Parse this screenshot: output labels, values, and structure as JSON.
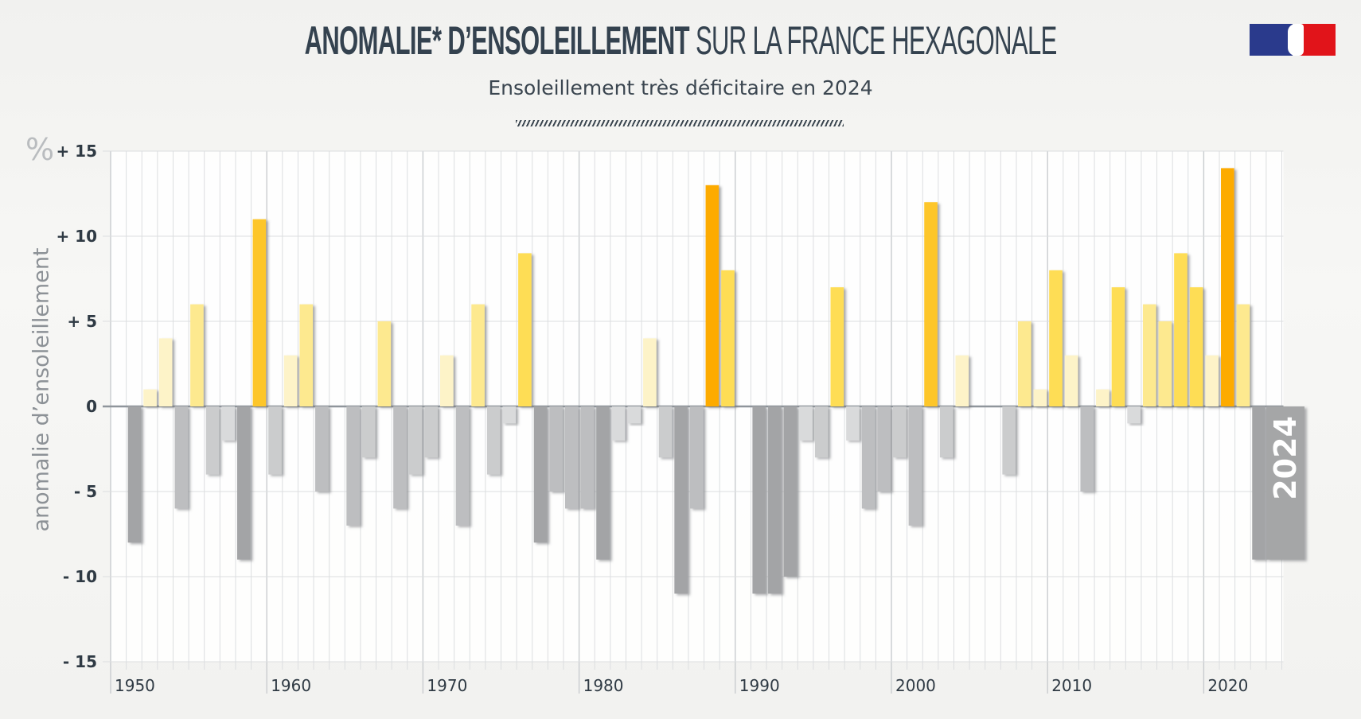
{
  "header": {
    "title_bold": "ANOMALIE* D’ENSOLEILLEMENT",
    "title_light": "SUR LA FRANCE HEXAGONALE",
    "subtitle": "Ensoleillement très déficitaire en 2024",
    "logo": "republique-francaise-logo"
  },
  "colors": {
    "gray_dark": "#a3a4a6",
    "gray_mid": "#bdbec0",
    "gray_light": "#d9dadb",
    "yellow_pale": "#fdf3c8",
    "yellow_light": "#fde98f",
    "yellow": "#fedd55",
    "yellow_strong": "#fdc62a",
    "orange": "#fdab03",
    "highlight_bar": "#a5a6a7"
  },
  "chart_data": {
    "type": "bar",
    "title": "ANOMALIE* D’ENSOLEILLEMENT SUR LA FRANCE HEXAGONALE",
    "subtitle": "Ensoleillement très déficitaire en 2024",
    "xlabel": "",
    "ylabel": "anomalie d’ensoleillement",
    "yunit": "%",
    "ylim": [
      -15,
      15
    ],
    "yticks": [
      15,
      10,
      5,
      0,
      -5,
      -10,
      -15
    ],
    "ytick_labels": [
      "+ 15",
      "+ 10",
      "+ 5",
      "0",
      "- 5",
      "- 10",
      "- 15"
    ],
    "xticks": [
      1950,
      1960,
      1970,
      1980,
      1990,
      2000,
      2010,
      2020
    ],
    "xtick_labels": [
      "1950",
      "1960",
      "1970",
      "1980",
      "1990",
      "2000",
      "2010",
      "2020"
    ],
    "grid": true,
    "highlight": {
      "year": 2024,
      "label": "2024"
    },
    "x": [
      1950,
      1951,
      1952,
      1953,
      1954,
      1955,
      1956,
      1957,
      1958,
      1959,
      1960,
      1961,
      1962,
      1963,
      1964,
      1965,
      1966,
      1967,
      1968,
      1969,
      1970,
      1971,
      1972,
      1973,
      1974,
      1975,
      1976,
      1977,
      1978,
      1979,
      1980,
      1981,
      1982,
      1983,
      1984,
      1985,
      1986,
      1987,
      1988,
      1989,
      1990,
      1991,
      1992,
      1993,
      1994,
      1995,
      1996,
      1997,
      1998,
      1999,
      2000,
      2001,
      2002,
      2003,
      2004,
      2005,
      2006,
      2007,
      2008,
      2009,
      2010,
      2011,
      2012,
      2013,
      2014,
      2015,
      2016,
      2017,
      2018,
      2019,
      2020,
      2021,
      2022,
      2023,
      2024
    ],
    "values": [
      0,
      -8,
      1,
      4,
      -6,
      6,
      -4,
      -2,
      -9,
      11,
      -4,
      3,
      6,
      -5,
      0,
      -7,
      -3,
      5,
      -6,
      -4,
      -3,
      3,
      -7,
      6,
      -4,
      -1,
      9,
      -8,
      -5,
      -6,
      -6,
      -9,
      -2,
      -1,
      4,
      -3,
      -11,
      -6,
      13,
      8,
      0,
      -11,
      -11,
      -10,
      -2,
      -3,
      7,
      -2,
      -6,
      -5,
      -3,
      -7,
      12,
      -3,
      3,
      0,
      0,
      -4,
      5,
      1,
      8,
      3,
      -5,
      1,
      7,
      -1,
      6,
      5,
      9,
      7,
      3,
      14,
      6,
      -9,
      null
    ],
    "values_note": "2024 shown as highlighted bar",
    "value_2024": -9
  }
}
